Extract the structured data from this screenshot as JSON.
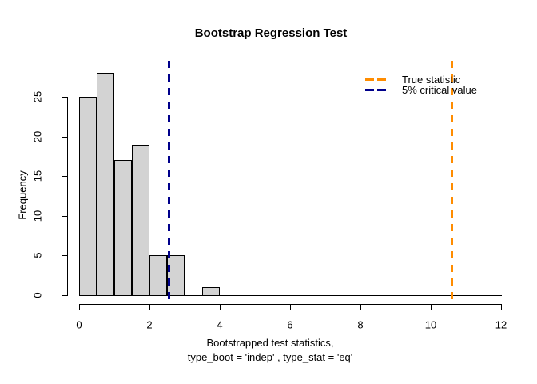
{
  "chart_data": {
    "type": "bar",
    "subtype": "histogram",
    "title": "Bootstrap Regression Test",
    "ylabel": "Frequency",
    "xlabel_line1": "Bootstrapped test statistics,",
    "xlabel_line2": "type_boot = 'indep' , type_stat = 'eq'",
    "bin_start": 0,
    "bin_width": 0.5,
    "bin_edges": [
      0,
      0.5,
      1,
      1.5,
      2,
      2.5,
      3,
      3.5,
      4
    ],
    "counts": [
      25,
      28,
      17,
      19,
      5,
      5,
      0,
      1
    ],
    "xlim": [
      0,
      12
    ],
    "ylim": [
      0,
      25
    ],
    "x_ticks": [
      0,
      2,
      4,
      6,
      8,
      10,
      12
    ],
    "y_ticks": [
      0,
      5,
      10,
      15,
      20,
      25
    ],
    "grid": false,
    "bar_fill": "#d3d3d3",
    "bar_border": "#000000",
    "vlines": [
      {
        "value": 10.6,
        "label": "True statistic",
        "color": "#FF8C00",
        "line_style": "dashed"
      },
      {
        "value": 2.55,
        "label": "5% critical value",
        "color": "#00008B",
        "line_style": "dashed"
      }
    ],
    "legend_position": "topright",
    "legend": [
      {
        "label": "True statistic",
        "color": "#FF8C00",
        "line_style": "dashed"
      },
      {
        "label": "5% critical value",
        "color": "#00008B",
        "line_style": "dashed"
      }
    ]
  }
}
